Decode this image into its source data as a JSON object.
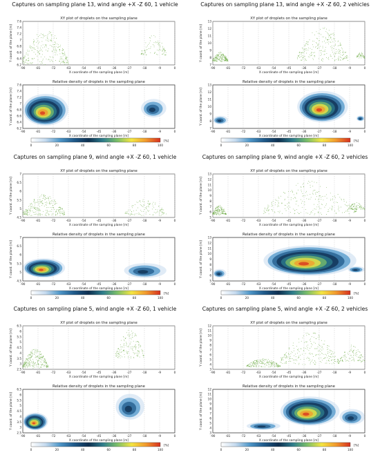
{
  "colors": {
    "scatter": "#5aa02c",
    "axis": "#444444",
    "grid": "#bdbdbd",
    "colormap": [
      "#ffffff",
      "#c6dbef",
      "#4f97c9",
      "#1f5a8a",
      "#0d2f50",
      "#2e7d8c",
      "#7bbf6a",
      "#f5e642",
      "#f29a2e",
      "#d7301f"
    ]
  },
  "shared_text": {
    "xy_title": "XY plot of droplets on the sampling plane",
    "density_title": "Relative density of droplets in the sampling plane",
    "xlabel": "X coordinate of the sampling plane [m]",
    "ylabel": "Y coord. of the plane [m]",
    "colorbar_unit": "[%]",
    "colorbar_ticks": [
      "0",
      "20",
      "40",
      "60",
      "80",
      "100"
    ]
  },
  "chart_data": [
    {
      "type": "scatter",
      "title": "Captures on sampling plane 13, wind angle +X -Z 60, 1 vehicle",
      "xlabel": "X coordinate of the sampling plane [m]",
      "ylabel": "Y coord. of the plane [m]",
      "x_ticks": [
        "-90",
        "-81",
        "-72",
        "-63",
        "-54",
        "-45",
        "-36",
        "-27",
        "-18",
        "-9",
        "0"
      ],
      "xlim": [
        -90,
        0
      ],
      "y_ticks": [
        "6.2",
        "6.4",
        "6.6",
        "6.8",
        "7",
        "7.2",
        "7.4",
        "7.6"
      ],
      "ylim": [
        6.2,
        7.6
      ],
      "colorbar_ticks": [
        "0",
        "20",
        "40",
        "60",
        "80",
        "100"
      ],
      "clusters": [
        {
          "x": [
            -90,
            -63
          ],
          "y": [
            6.2,
            7.4
          ],
          "weight": 1.0
        },
        {
          "x": [
            -20,
            -5
          ],
          "y": [
            6.5,
            7.2
          ],
          "weight": 0.35
        }
      ]
    },
    {
      "type": "scatter",
      "title": "Captures on sampling plane 13, wind angle +X -Z 60, 2 vehicles",
      "xlabel": "X coordinate of the sampling plane [m]",
      "ylabel": "Y coord. of the plane [m]",
      "x_ticks": [
        "-90",
        "-81",
        "-72",
        "-63",
        "-54",
        "-45",
        "-36",
        "-27",
        "-18",
        "-9",
        "0"
      ],
      "xlim": [
        -90,
        0
      ],
      "y_ticks": [
        "7",
        "8",
        "9",
        "10",
        "11",
        "12",
        "13"
      ],
      "ylim": [
        6.5,
        13
      ],
      "colorbar_ticks": [
        "0",
        "20",
        "40",
        "60",
        "80",
        "100"
      ],
      "clusters": [
        {
          "x": [
            -90,
            -81
          ],
          "y": [
            7,
            8.5
          ],
          "weight": 0.7
        },
        {
          "x": [
            -40,
            -10
          ],
          "y": [
            7,
            12.5
          ],
          "weight": 1.0
        },
        {
          "x": [
            -5,
            0
          ],
          "y": [
            7.5,
            8.5
          ],
          "weight": 0.2
        }
      ]
    },
    {
      "type": "scatter",
      "title": "Captures on sampling plane 9, wind angle +X -Z 60, 1 vehicle",
      "xlabel": "X coordinate of the sampling plane [m]",
      "ylabel": "Y coord. of the plane [m]",
      "x_ticks": [
        "-90",
        "-81",
        "-72",
        "-63",
        "-54",
        "-45",
        "-36",
        "-27",
        "-18",
        "-9",
        "0"
      ],
      "xlim": [
        -90,
        0
      ],
      "y_ticks": [
        "4.5",
        "5",
        "5.5",
        "6",
        "6.5",
        "7"
      ],
      "ylim": [
        4.5,
        7
      ],
      "colorbar_ticks": [
        "0",
        "20",
        "40",
        "60",
        "80",
        "100"
      ],
      "clusters": [
        {
          "x": [
            -90,
            -65
          ],
          "y": [
            4.6,
            5.9
          ],
          "weight": 1.0
        },
        {
          "x": [
            -30,
            -5
          ],
          "y": [
            4.6,
            5.6
          ],
          "weight": 0.45
        }
      ]
    },
    {
      "type": "scatter",
      "title": "Captures on sampling plane 9, wind angle +X -Z 60, 2 vehicles",
      "xlabel": "X coordinate of the sampling plane [m]",
      "ylabel": "Y coord. of the plane [m]",
      "x_ticks": [
        "-90",
        "-81",
        "-72",
        "-63",
        "-54",
        "-45",
        "-36",
        "-27",
        "-18",
        "-9",
        "0"
      ],
      "xlim": [
        -90,
        0
      ],
      "y_ticks": [
        "5",
        "6",
        "7",
        "8",
        "9",
        "10",
        "11",
        "12",
        "13"
      ],
      "ylim": [
        4.5,
        13
      ],
      "colorbar_ticks": [
        "0",
        "20",
        "40",
        "60",
        "80",
        "100"
      ],
      "clusters": [
        {
          "x": [
            -90,
            -82
          ],
          "y": [
            5,
            7
          ],
          "weight": 0.6
        },
        {
          "x": [
            -60,
            -5
          ],
          "y": [
            5,
            12
          ],
          "weight": 1.0
        },
        {
          "x": [
            -10,
            0
          ],
          "y": [
            6,
            7.5
          ],
          "weight": 0.3
        }
      ]
    },
    {
      "type": "scatter",
      "title": "Captures on sampling plane 5, wind angle +X -Z 60, 1 vehicle",
      "xlabel": "X coordinate of the sampling plane [m]",
      "ylabel": "Y coord. of the plane [m]",
      "x_ticks": [
        "-90",
        "-81",
        "-72",
        "-63",
        "-54",
        "-45",
        "-36",
        "-27",
        "-18",
        "-9",
        "0"
      ],
      "xlim": [
        -90,
        0
      ],
      "y_ticks": [
        "2.5",
        "3",
        "3.5",
        "4",
        "4.5",
        "5",
        "5.5",
        "6",
        "6.5"
      ],
      "ylim": [
        2.5,
        6.5
      ],
      "colorbar_ticks": [
        "0",
        "20",
        "40",
        "60",
        "80",
        "100"
      ],
      "clusters": [
        {
          "x": [
            -90,
            -75
          ],
          "y": [
            2.6,
            4.5
          ],
          "weight": 1.0
        },
        {
          "x": [
            -35,
            -18
          ],
          "y": [
            3.5,
            6.3
          ],
          "weight": 0.6
        }
      ]
    },
    {
      "type": "scatter",
      "title": "Captures on sampling plane 5, wind angle +X -Z 60, 2 vehicles",
      "xlabel": "X coordinate of the sampling plane [m]",
      "ylabel": "Y coord. of the plane [m]",
      "x_ticks": [
        "-90",
        "-81",
        "-72",
        "-63",
        "-54",
        "-45",
        "-36",
        "-27",
        "-18",
        "-9",
        "0"
      ],
      "xlim": [
        -90,
        0
      ],
      "y_ticks": [
        "3",
        "4",
        "5",
        "6",
        "7",
        "8",
        "9",
        "10",
        "11",
        "12"
      ],
      "ylim": [
        2.5,
        12
      ],
      "colorbar_ticks": [
        "0",
        "20",
        "40",
        "60",
        "80",
        "100"
      ],
      "clusters": [
        {
          "x": [
            -70,
            -50
          ],
          "y": [
            3,
            5
          ],
          "weight": 0.8
        },
        {
          "x": [
            -50,
            -15
          ],
          "y": [
            3.5,
            11
          ],
          "weight": 1.0
        },
        {
          "x": [
            -15,
            0
          ],
          "y": [
            4,
            8
          ],
          "weight": 0.4
        }
      ]
    }
  ]
}
